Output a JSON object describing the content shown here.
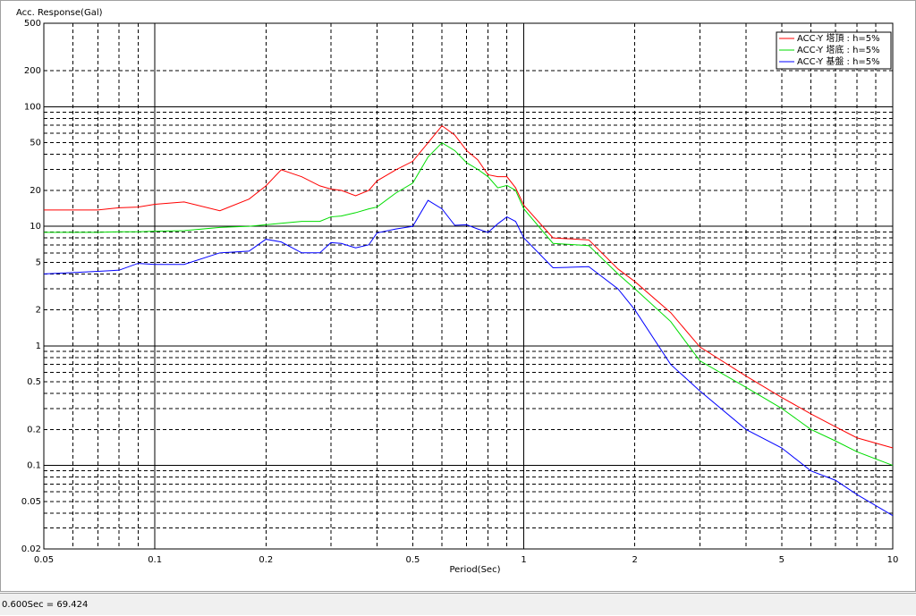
{
  "chart_data": {
    "type": "line",
    "y_axis_label": "Acc. Response(Gal)",
    "x_axis_label": "Period(Sec)",
    "log_x": true,
    "log_y": true,
    "grid": true,
    "legend_position": "upper-right",
    "xlim": [
      0.05,
      10
    ],
    "ylim": [
      0.02,
      500
    ],
    "xticks": [
      0.05,
      0.1,
      0.2,
      0.5,
      1,
      2,
      5,
      10
    ],
    "yticks": [
      0.02,
      0.05,
      0.1,
      0.2,
      0.5,
      1,
      2,
      5,
      10,
      20,
      50,
      100,
      200,
      500
    ],
    "x_minor_grid": [
      0.06,
      0.07,
      0.08,
      0.09,
      0.3,
      0.4,
      0.6,
      0.7,
      0.8,
      0.9,
      3,
      4,
      6,
      7,
      8,
      9
    ],
    "y_minor_grid": [
      0.03,
      0.04,
      0.06,
      0.07,
      0.08,
      0.09,
      0.3,
      0.4,
      0.6,
      0.7,
      0.8,
      0.9,
      3,
      4,
      6,
      7,
      8,
      9,
      30,
      40,
      60,
      70,
      80,
      90
    ],
    "x": [
      0.05,
      0.06,
      0.07,
      0.08,
      0.09,
      0.1,
      0.12,
      0.15,
      0.18,
      0.2,
      0.22,
      0.25,
      0.28,
      0.3,
      0.32,
      0.35,
      0.38,
      0.4,
      0.45,
      0.5,
      0.55,
      0.6,
      0.65,
      0.7,
      0.75,
      0.8,
      0.85,
      0.9,
      0.95,
      1.0,
      1.2,
      1.5,
      1.8,
      2,
      2.5,
      3,
      4,
      5,
      6,
      7,
      8,
      10
    ],
    "series": [
      {
        "name": "ACC-Y 塔頂 : h=5%",
        "color": "#ff0000",
        "values": [
          13.7,
          13.7,
          13.7,
          14.3,
          14.5,
          15.3,
          16,
          13.5,
          16.9,
          21.8,
          29.7,
          26,
          21.8,
          20.5,
          20,
          18,
          20,
          24,
          29.7,
          35,
          50,
          69.424,
          58,
          43,
          36,
          27,
          26,
          26,
          21,
          15,
          8,
          7.7,
          4.4,
          3.45,
          1.9,
          0.98,
          0.56,
          0.37,
          0.27,
          0.21,
          0.17,
          0.14
        ]
      },
      {
        "name": "ACC-Y 塔底 : h=5%",
        "color": "#00dd00",
        "values": [
          8.9,
          8.9,
          8.9,
          9,
          9,
          9.1,
          9.2,
          9.8,
          10,
          10.3,
          10.6,
          11,
          11,
          12,
          12.2,
          13,
          14,
          14.5,
          19,
          23,
          38,
          50,
          43,
          34,
          30,
          26,
          21,
          22,
          20,
          14,
          7.2,
          6.9,
          4,
          3,
          1.6,
          0.75,
          0.45,
          0.3,
          0.2,
          0.16,
          0.13,
          0.1
        ]
      },
      {
        "name": "ACC-Y 基盤 : h=5%",
        "color": "#0000ff",
        "values": [
          4.0,
          4.1,
          4.2,
          4.3,
          4.9,
          4.8,
          4.8,
          6.0,
          6.2,
          7.8,
          7.4,
          6.0,
          6.0,
          7.3,
          7.2,
          6.6,
          7.0,
          8.8,
          9.5,
          10,
          16.5,
          14,
          10.2,
          10.3,
          9.5,
          8.9,
          10.5,
          12,
          11,
          8,
          4.5,
          4.6,
          3,
          2.0,
          0.7,
          0.42,
          0.2,
          0.14,
          0.09,
          0.075,
          0.057,
          0.038
        ]
      }
    ]
  },
  "status_text": "0.600Sec = 69.424"
}
